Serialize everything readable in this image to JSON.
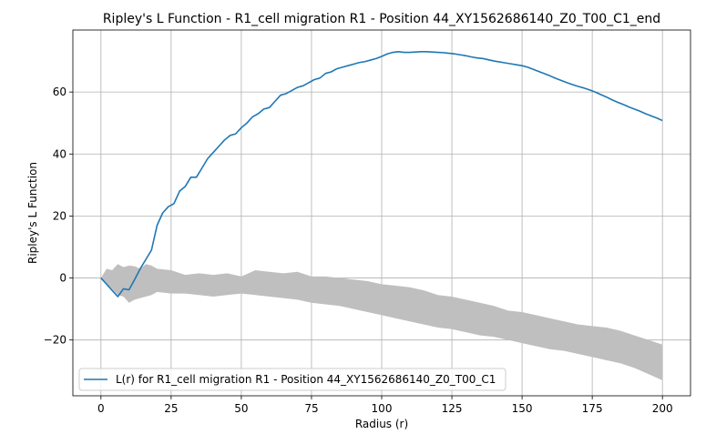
{
  "chart_data": {
    "type": "line",
    "title": "Ripley's L Function - R1_cell migration R1 - Position 44_XY1562686140_Z0_T00_C1_end",
    "xlabel": "Radius (r)",
    "ylabel": "Ripley's L Function",
    "xlim": [
      -10,
      210
    ],
    "ylim": [
      -38,
      80
    ],
    "xticks": [
      0,
      25,
      50,
      75,
      100,
      125,
      150,
      175,
      200
    ],
    "yticks": [
      -20,
      0,
      20,
      40,
      60
    ],
    "xtick_labels": [
      "0",
      "25",
      "50",
      "75",
      "100",
      "125",
      "150",
      "175",
      "200"
    ],
    "ytick_labels": [
      "−20",
      "0",
      "20",
      "40",
      "60"
    ],
    "grid": true,
    "legend_placement": "lower-left",
    "series": [
      {
        "name": "L(r) for R1_cell migration R1 - Position 44_XY1562686140_Z0_T00_C1",
        "color": "#1f77b4",
        "x": [
          0,
          2,
          4,
          6,
          8,
          10,
          12,
          14,
          16,
          18,
          20,
          22,
          24,
          26,
          28,
          30,
          32,
          34,
          36,
          38,
          40,
          42,
          44,
          46,
          48,
          50,
          52,
          54,
          56,
          58,
          60,
          62,
          64,
          66,
          68,
          70,
          72,
          74,
          76,
          78,
          80,
          82,
          84,
          86,
          88,
          90,
          92,
          94,
          96,
          98,
          100,
          102,
          104,
          106,
          108,
          110,
          112,
          114,
          116,
          118,
          120,
          122,
          124,
          126,
          128,
          130,
          132,
          134,
          136,
          138,
          140,
          142,
          144,
          146,
          148,
          150,
          152,
          154,
          156,
          158,
          160,
          162,
          164,
          166,
          168,
          170,
          172,
          174,
          176,
          178,
          180,
          182,
          184,
          186,
          188,
          190,
          192,
          194,
          196,
          198,
          200
        ],
        "y": [
          0,
          -2,
          -4,
          -6,
          -3.5,
          -3.8,
          -0.5,
          3,
          6,
          9,
          17,
          21,
          23,
          24,
          28,
          29.5,
          32.5,
          32.5,
          35.5,
          38.5,
          40.5,
          42.5,
          44.5,
          46,
          46.5,
          48.5,
          50,
          52,
          53,
          54.5,
          55,
          57,
          59,
          59.5,
          60.5,
          61.5,
          62,
          63,
          64,
          64.5,
          66,
          66.5,
          67.5,
          68,
          68.5,
          69,
          69.5,
          69.8,
          70.3,
          70.8,
          71.5,
          72.3,
          72.8,
          73,
          72.8,
          72.8,
          72.9,
          73,
          73,
          72.9,
          72.8,
          72.7,
          72.5,
          72.3,
          72,
          71.7,
          71.3,
          71,
          70.8,
          70.4,
          70,
          69.7,
          69.4,
          69.1,
          68.8,
          68.5,
          68,
          67.3,
          66.6,
          65.9,
          65.2,
          64.4,
          63.7,
          63,
          62.4,
          61.8,
          61.3,
          60.7,
          60,
          59.2,
          58.4,
          57.5,
          56.7,
          56,
          55.2,
          54.5,
          53.8,
          53,
          52.3,
          51.6,
          50.8
        ]
      }
    ],
    "envelope": {
      "color": "#bfbfbf",
      "x": [
        0,
        2,
        4,
        6,
        8,
        10,
        12,
        14,
        16,
        18,
        20,
        25,
        30,
        35,
        40,
        45,
        50,
        55,
        60,
        65,
        70,
        75,
        80,
        85,
        90,
        95,
        100,
        105,
        110,
        115,
        120,
        125,
        130,
        135,
        140,
        145,
        150,
        155,
        160,
        165,
        170,
        175,
        180,
        185,
        190,
        195,
        200
      ],
      "upper": [
        0,
        3,
        2.5,
        4.5,
        3.5,
        4,
        3.8,
        3,
        4.5,
        4,
        3,
        2.5,
        1,
        1.5,
        1,
        1.5,
        0.5,
        2.5,
        2,
        1.5,
        2,
        0.5,
        0.5,
        0,
        -0.5,
        -1,
        -2,
        -2.5,
        -3,
        -4,
        -5.5,
        -6,
        -7,
        -8,
        -9,
        -10.5,
        -11,
        -12,
        -13,
        -14,
        -15,
        -15.5,
        -16,
        -17,
        -18.5,
        -20,
        -21.5
      ],
      "lower": [
        0,
        -2,
        -3.5,
        -5.5,
        -6,
        -8,
        -7,
        -6.5,
        -6,
        -5.5,
        -4.5,
        -5,
        -5,
        -5.5,
        -6,
        -5.5,
        -5,
        -5.5,
        -6,
        -6.5,
        -7,
        -8,
        -8.5,
        -9,
        -10,
        -11,
        -12,
        -13,
        -14,
        -15,
        -16,
        -16.5,
        -17.5,
        -18.5,
        -19,
        -20,
        -21,
        -22,
        -23,
        -23.5,
        -24.5,
        -25.5,
        -26.5,
        -27.5,
        -29,
        -31,
        -33
      ]
    }
  }
}
